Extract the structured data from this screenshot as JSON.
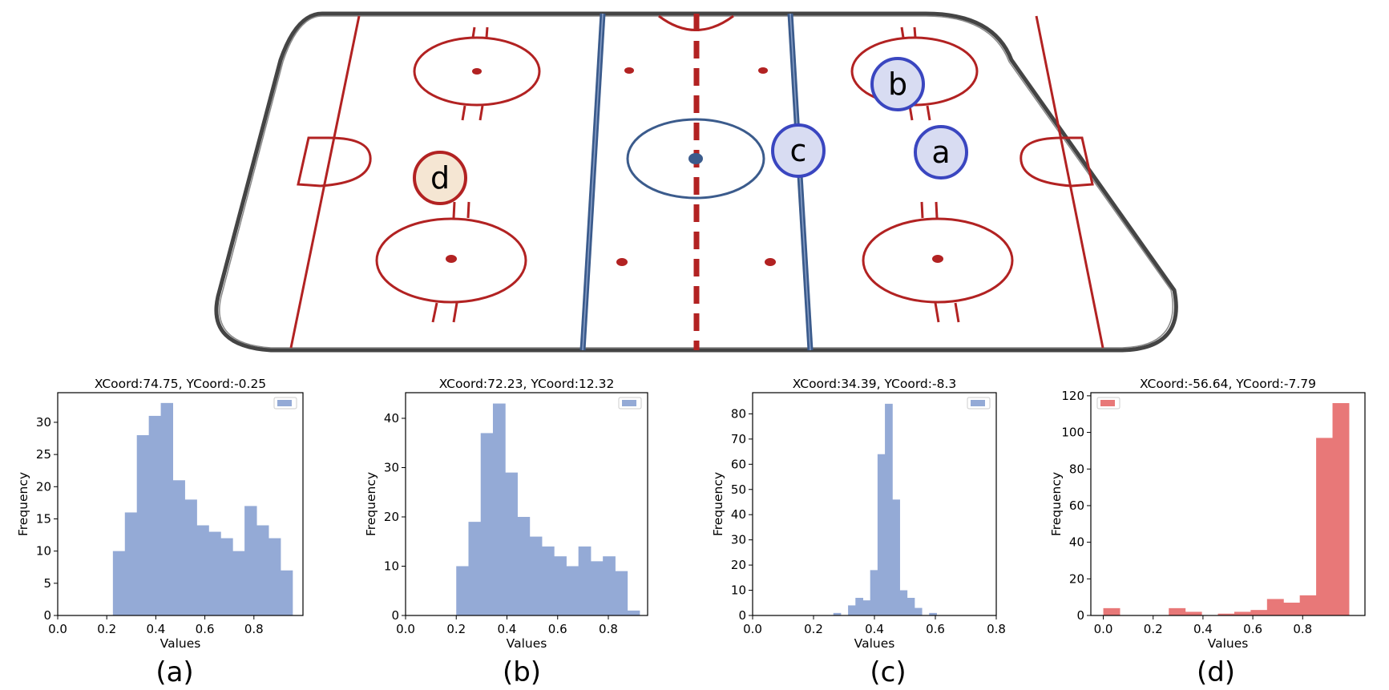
{
  "rink": {
    "markers": [
      {
        "label": "a",
        "team": "blue"
      },
      {
        "label": "b",
        "team": "blue"
      },
      {
        "label": "c",
        "team": "blue"
      },
      {
        "label": "d",
        "team": "red"
      }
    ]
  },
  "colors": {
    "blue_hist": "#94aad6",
    "red_hist": "#e87878",
    "rink_red": "#b22222",
    "rink_blue": "#3b5b8c",
    "marker_blue_fill": "#d8dcf2",
    "marker_blue_stroke": "#3a46c0",
    "marker_red_fill": "#f5e6d3",
    "marker_red_stroke": "#b22222"
  },
  "chart_data": [
    {
      "type": "bar",
      "panel_label": "(a)",
      "title": "XCoord:74.75, YCoord:-0.25",
      "xlabel": "Values",
      "ylabel": "Frequency",
      "xlim": [
        0.0,
        1.0
      ],
      "ylim": [
        0,
        34.6
      ],
      "xticks": [
        0.0,
        0.2,
        0.4,
        0.6,
        0.8
      ],
      "yticks": [
        0,
        5,
        10,
        15,
        20,
        25,
        30
      ],
      "bin_start": 0.225,
      "bin_width": 0.0488,
      "values": [
        10,
        16,
        28,
        31,
        33,
        21,
        18,
        14,
        13,
        12,
        10,
        17,
        14,
        12,
        7
      ],
      "color": "#94aad6",
      "legend": "top-right",
      "grid": false
    },
    {
      "type": "bar",
      "panel_label": "(b)",
      "title": "XCoord:72.23, YCoord:12.32",
      "xlabel": "Values",
      "ylabel": "Frequency",
      "xlim": [
        0.0,
        0.955
      ],
      "ylim": [
        0,
        45.2
      ],
      "xticks": [
        0.0,
        0.2,
        0.4,
        0.6,
        0.8
      ],
      "yticks": [
        0,
        10,
        20,
        30,
        40
      ],
      "bin_start": 0.2,
      "bin_width": 0.0482,
      "values": [
        10,
        19,
        37,
        43,
        29,
        20,
        16,
        14,
        12,
        10,
        14,
        11,
        12,
        9,
        1
      ],
      "color": "#94aad6",
      "legend": "top-right",
      "grid": false
    },
    {
      "type": "bar",
      "panel_label": "(c)",
      "title": "XCoord:34.39, YCoord:-8.3",
      "xlabel": "Values",
      "ylabel": "Frequency",
      "xlim": [
        0.0,
        0.8
      ],
      "ylim": [
        0,
        88.4
      ],
      "xticks": [
        0.0,
        0.2,
        0.4,
        0.6,
        0.8
      ],
      "yticks": [
        0,
        10,
        20,
        30,
        40,
        50,
        60,
        70,
        80
      ],
      "bin_start": 0.265,
      "bin_width": 0.0242,
      "values": [
        1,
        0,
        4,
        7,
        6,
        18,
        64,
        84,
        46,
        10,
        7,
        3,
        0,
        1
      ],
      "color": "#94aad6",
      "legend": "top-right",
      "grid": false
    },
    {
      "type": "bar",
      "panel_label": "(d)",
      "title": "XCoord:-56.64, YCoord:-7.79",
      "xlabel": "Values",
      "ylabel": "Frequency",
      "xlim": [
        -0.05,
        1.05
      ],
      "ylim": [
        0,
        121.7
      ],
      "xticks": [
        0.0,
        0.2,
        0.4,
        0.6,
        0.8
      ],
      "yticks": [
        0,
        20,
        40,
        60,
        80,
        100,
        120
      ],
      "bin_start": 0.0,
      "bin_width": 0.0657,
      "values": [
        4,
        0,
        0,
        0,
        4,
        2,
        0,
        1,
        2,
        3,
        9,
        7,
        11,
        97,
        116
      ],
      "color": "#e87878",
      "legend": "top-left",
      "grid": false
    }
  ]
}
